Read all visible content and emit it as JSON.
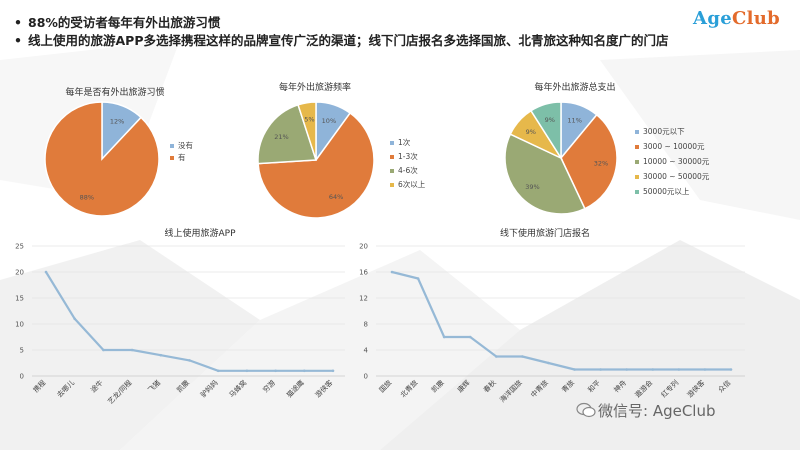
{
  "header": {
    "bullets": [
      "88%的受访者每年有外出旅游习惯",
      "线上使用的旅游APP多选择携程这样的品牌宣传广泛的渠道；线下门店报名多选择国旅、北青旅这种知名度广的门店"
    ],
    "logo_part1": "Age",
    "logo_part2": "Club"
  },
  "watermark": "微信号: AgeClub",
  "colors": {
    "blue": "#8fb4d9",
    "orange": "#e07b3b",
    "green": "#9aa974",
    "gold": "#e6b84b",
    "teal": "#7dbfa8",
    "line": "#96b9d6"
  },
  "chart_data": [
    {
      "type": "pie",
      "title": "每年是否有外出旅游习惯",
      "labels": [
        "没有",
        "有"
      ],
      "values": [
        12,
        88
      ],
      "value_labels": [
        "12%",
        "88%"
      ],
      "legend": "right"
    },
    {
      "type": "pie",
      "title": "每年外出旅游频率",
      "labels": [
        "1次",
        "1-3次",
        "4-6次",
        "6次以上"
      ],
      "values": [
        10,
        64,
        21,
        5
      ],
      "value_labels": [
        "10%",
        "64%",
        "21%",
        "5%"
      ],
      "legend": "right"
    },
    {
      "type": "pie",
      "title": "每年外出旅游总支出",
      "labels": [
        "3000元以下",
        "3000 ~ 10000元",
        "10000 ~ 30000元",
        "30000 ~ 50000元",
        "50000元以上"
      ],
      "values": [
        11,
        32,
        39,
        9,
        9
      ],
      "value_labels": [
        "11%",
        "32%",
        "39%",
        "9%",
        "9%"
      ],
      "legend": "right"
    },
    {
      "type": "line",
      "title": "线上使用旅游APP",
      "categories": [
        "携程",
        "去哪儿",
        "途牛",
        "艺龙/同程",
        "飞猪",
        "凯撒",
        "驴妈妈",
        "马蜂窝",
        "穷游",
        "猫途鹰",
        "游侠客"
      ],
      "values": [
        20,
        11,
        5,
        5,
        4,
        3,
        1,
        1,
        1,
        1,
        1
      ],
      "ylim": [
        0,
        25
      ],
      "yticks": [
        0,
        5,
        10,
        15,
        20,
        25
      ],
      "grid": true
    },
    {
      "type": "line",
      "title": "线下使用旅游门店报名",
      "categories": [
        "国旅",
        "北青旅",
        "凯撒",
        "康辉",
        "春秋",
        "海洋国旅",
        "中青旅",
        "青旅",
        "和平",
        "神舟",
        "遨游会",
        "红专列",
        "游侠客",
        "众信"
      ],
      "values": [
        16,
        15,
        6,
        6,
        3,
        3,
        2,
        1,
        1,
        1,
        1,
        1,
        1,
        1
      ],
      "ylim": [
        0,
        20
      ],
      "yticks": [
        0,
        4,
        8,
        12,
        16,
        20
      ],
      "grid": true
    }
  ]
}
